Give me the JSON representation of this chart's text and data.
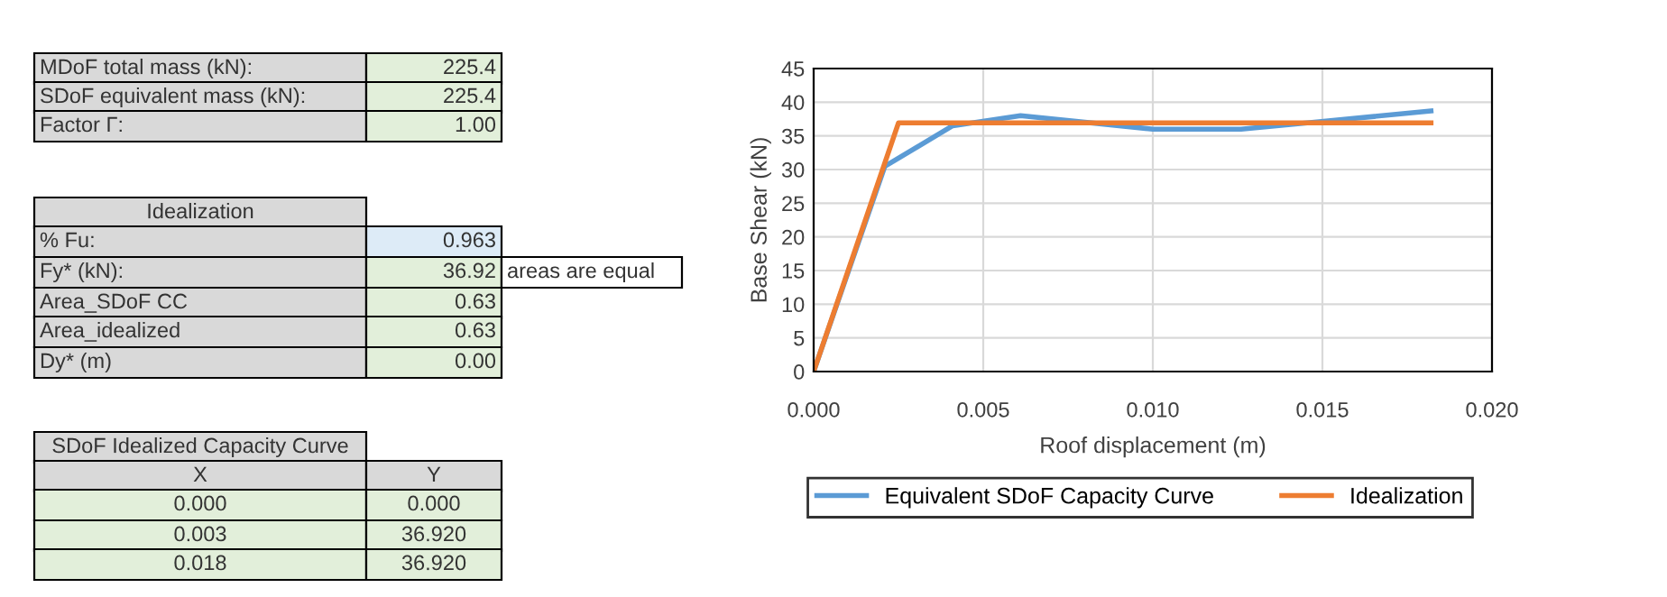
{
  "chart_data": [
    {
      "type": "other",
      "annotations": [
        "MDoF total mass (kN):",
        "225.4",
        "SDoF equivalent mass (kN):",
        "225.4",
        "Factor Γ:",
        "1.00",
        "Idealization",
        "% Fu:",
        "0.963",
        "Fy* (kN):",
        "36.92",
        "areas are equal",
        "Area_SDoF CC",
        "0.63",
        "Area_idealized",
        "0.63",
        "Dy* (m)",
        "0.00",
        "SDoF Idealized Capacity Curve",
        "X",
        "Y",
        "0.000",
        "0.000",
        "0.003",
        "36.920",
        "0.018",
        "36.920"
      ]
    },
    {
      "type": "line",
      "xlabel": "Roof displacement (m)",
      "ylabel": "Base Shear (kN)",
      "xlim": [
        0,
        0.02
      ],
      "xticks": [
        {
          "value": 0,
          "label": "0.000"
        },
        {
          "value": 0.005,
          "label": "0.005"
        },
        {
          "value": 0.01,
          "label": "0.010"
        },
        {
          "value": 0.015,
          "label": "0.015"
        },
        {
          "value": 0.02,
          "label": "0.020"
        }
      ],
      "ylim": [
        0,
        45
      ],
      "yticks": [
        0,
        5,
        10,
        15,
        20,
        25,
        30,
        35,
        40,
        45
      ],
      "grid": true,
      "legend": "bottom",
      "series": [
        {
          "name": "Equivalent SDoF Capacity Curve",
          "color": "#5b9bd5",
          "x": [
            0,
            0.0021,
            0.0041,
            0.0061,
            0.01,
            0.0126,
            0.0149,
            0.0182
          ],
          "values": [
            0,
            30.5,
            36.5,
            38.0,
            36.0,
            36.0,
            37.1,
            38.7
          ]
        },
        {
          "name": "Idealization",
          "color": "#ed7d31",
          "x": [
            0,
            0.0025,
            0.0182
          ],
          "values": [
            0,
            36.92,
            36.92
          ]
        }
      ]
    }
  ]
}
